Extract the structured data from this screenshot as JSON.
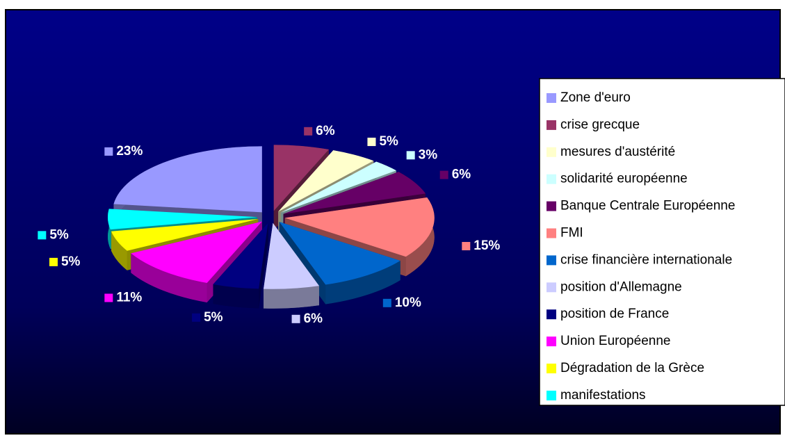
{
  "chart_data": {
    "type": "pie",
    "categories": [
      "Zone d'euro",
      "crise grecque",
      "mesures d'austérité",
      "solidarité européenne",
      "Banque Centrale Européenne",
      "FMI",
      "crise financière internationale",
      "position d'Allemagne",
      "position de France",
      "Union Européenne",
      "Dégradation de la Grèce",
      "manifestations"
    ],
    "values": [
      23,
      6,
      5,
      3,
      6,
      15,
      10,
      6,
      5,
      11,
      5,
      5
    ],
    "value_labels": [
      "23%",
      "6%",
      "5%",
      "3%",
      "6%",
      "15%",
      "10%",
      "6%",
      "5%",
      "11%",
      "5%",
      "5%"
    ],
    "colors": [
      "#9999ff",
      "#993366",
      "#ffffcc",
      "#ccffff",
      "#660066",
      "#ff8080",
      "#0066cc",
      "#ccccff",
      "#000080",
      "#ff00ff",
      "#ffff00",
      "#00ffff"
    ],
    "legend": "right"
  }
}
